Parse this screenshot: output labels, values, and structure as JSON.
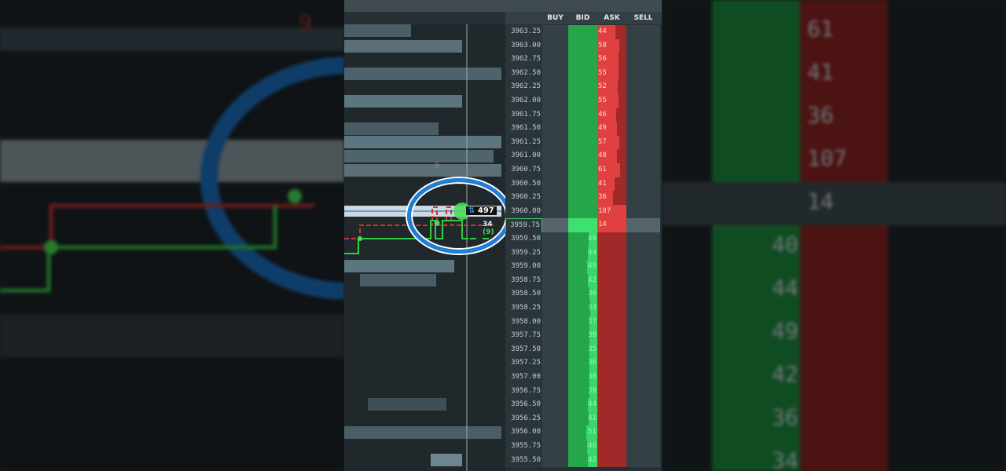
{
  "header": {
    "columns": [
      "BUY",
      "BID",
      "ASK",
      "SELL"
    ]
  },
  "colors": {
    "bid": "#25a64b",
    "ask": "#a02a2a",
    "highlight_ring": "#1e7fd8",
    "last": "#3ee070"
  },
  "ladder": {
    "current_price": "3959.75",
    "rows": [
      {
        "price": "3963.25",
        "ask": "44"
      },
      {
        "price": "3963.00",
        "ask": "58"
      },
      {
        "price": "3962.75",
        "ask": "56"
      },
      {
        "price": "3962.50",
        "ask": "55"
      },
      {
        "price": "3962.25",
        "ask": "52"
      },
      {
        "price": "3962.00",
        "ask": "55"
      },
      {
        "price": "3961.75",
        "ask": "46"
      },
      {
        "price": "3961.50",
        "ask": "49"
      },
      {
        "price": "3961.25",
        "ask": "57"
      },
      {
        "price": "3961.00",
        "ask": "48"
      },
      {
        "price": "3960.75",
        "ask": "61"
      },
      {
        "price": "3960.50",
        "ask": "41"
      },
      {
        "price": "3960.25",
        "ask": "36"
      },
      {
        "price": "3960.00",
        "ask": "107"
      },
      {
        "price": "3959.75",
        "ask": "14"
      },
      {
        "price": "3959.50",
        "bid": "40"
      },
      {
        "price": "3959.25",
        "bid": "44"
      },
      {
        "price": "3959.00",
        "bid": "49"
      },
      {
        "price": "3958.75",
        "bid": "42"
      },
      {
        "price": "3958.50",
        "bid": "36"
      },
      {
        "price": "3958.25",
        "bid": "34"
      },
      {
        "price": "3958.00",
        "bid": "37"
      },
      {
        "price": "3957.75",
        "bid": "38"
      },
      {
        "price": "3957.50",
        "bid": "35"
      },
      {
        "price": "3957.25",
        "bid": "36"
      },
      {
        "price": "3957.00",
        "bid": "38"
      },
      {
        "price": "3956.75",
        "bid": "38"
      },
      {
        "price": "3956.50",
        "bid": "44"
      },
      {
        "price": "3956.25",
        "bid": "41"
      },
      {
        "price": "3956.00",
        "bid": "51"
      },
      {
        "price": "3955.75",
        "bid": "46"
      },
      {
        "price": "3955.50",
        "bid": "42"
      }
    ]
  },
  "chart": {
    "volume_label": "497",
    "trade_label": "34",
    "trade_count": "(9)",
    "marker_label": "9"
  },
  "background_blur": {
    "right_numbers": [
      "61",
      "41",
      "36",
      "107",
      "14",
      "40",
      "44",
      "49",
      "42",
      "36",
      "34"
    ],
    "left_label": "9"
  }
}
